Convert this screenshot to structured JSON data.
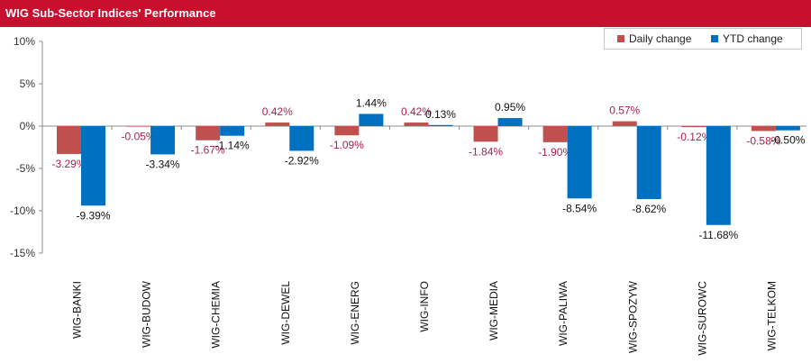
{
  "chart_data": {
    "type": "bar",
    "title": "WIG Sub-Sector Indices' Performance",
    "categories": [
      "WIG-BANKI",
      "WIG-BUDOW",
      "WIG-CHEMIA",
      "WIG-DEWEL",
      "WIG-ENERG",
      "WIG-INFO",
      "WIG-MEDIA",
      "WIG-PALIWA",
      "WIG-SPOZYW",
      "WIG-SUROWC",
      "WIG-TELKOM"
    ],
    "series": [
      {
        "name": "Daily change",
        "color": "#c0504d",
        "label_color": "#a8234a",
        "values": [
          -3.29,
          -0.05,
          -1.67,
          0.42,
          -1.09,
          0.42,
          -1.84,
          -1.9,
          0.57,
          -0.12,
          -0.58
        ],
        "labels": [
          "-3.29%",
          "-0.05%",
          "-1.67%",
          "0.42%",
          "-1.09%",
          "0.42%",
          "-1.84%",
          "-1.90%",
          "0.57%",
          "-0.12%",
          "-0.58%"
        ]
      },
      {
        "name": "YTD change",
        "color": "#0070c0",
        "label_color": "#111111",
        "values": [
          -9.39,
          -3.34,
          -1.14,
          -2.92,
          1.44,
          0.13,
          0.95,
          -8.54,
          -8.62,
          -11.68,
          -0.5
        ],
        "labels": [
          "-9.39%",
          "-3.34%",
          "-1.14%",
          "-2.92%",
          "1.44%",
          "0.13%",
          "0.95%",
          "-8.54%",
          "-8.62%",
          "-11.68%",
          "-0.50%"
        ]
      }
    ],
    "ylim": [
      -15,
      10
    ],
    "yticks": [
      10,
      5,
      0,
      -5,
      -10,
      -15
    ],
    "ytick_labels": [
      "10%",
      "5%",
      "0%",
      "-5%",
      "-10%",
      "-15%"
    ],
    "legend_position": "top-right",
    "grid": false
  }
}
